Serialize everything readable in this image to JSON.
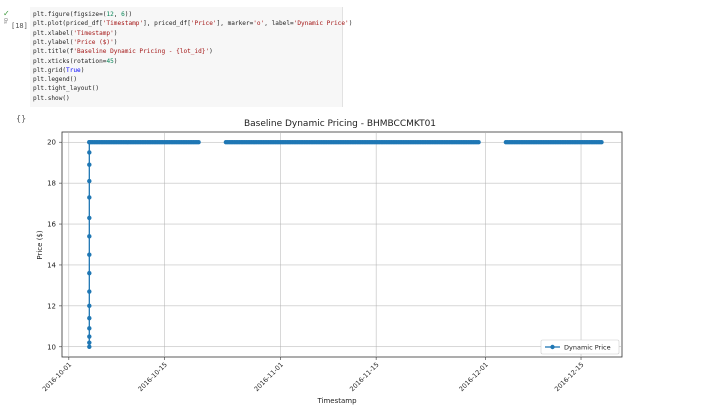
{
  "cell": {
    "exec_count": "[18]",
    "run_status_icon": "check-icon",
    "run_time": "0s",
    "code_lines": [
      "plt.figure(figsize=(12, 6))",
      "plt.plot(priced_df['Timestamp'], priced_df['Price'], marker='o', label='Dynamic Price')",
      "plt.xlabel('Timestamp')",
      "plt.ylabel('Price ($)')",
      "plt.title(f'Baseline Dynamic Pricing - {lot_id}')",
      "plt.xticks(rotation=45)",
      "plt.grid(True)",
      "plt.legend()",
      "plt.tight_layout()",
      "plt.show()"
    ],
    "output_icon": "output-toggle-icon",
    "output_icon_glyph": "{}"
  },
  "chart_data": {
    "type": "line",
    "title": "Baseline Dynamic Pricing - BHMBCCMKT01",
    "xlabel": "Timestamp",
    "ylabel": "Price ($)",
    "x_ticks": [
      "2016-10-01",
      "2016-10-15",
      "2016-11-01",
      "2016-11-15",
      "2016-12-01",
      "2016-12-15"
    ],
    "y_ticks": [
      "10",
      "12",
      "14",
      "16",
      "18",
      "20"
    ],
    "xlim": [
      "2016-09-30",
      "2016-12-21"
    ],
    "ylim": [
      9.5,
      20.5
    ],
    "grid": true,
    "legend_position": "lower-right",
    "marker": "o",
    "series": [
      {
        "name": "Dynamic Price",
        "color": "#1f77b4",
        "ramp": {
          "date": "2016-10-04",
          "values": [
            10.0,
            10.2,
            10.5,
            10.9,
            11.4,
            12.0,
            12.7,
            13.6,
            14.5,
            15.4,
            16.3,
            17.3,
            18.1,
            18.9,
            19.5,
            20.0
          ]
        },
        "segments": [
          {
            "start": "2016-10-04",
            "end": "2016-10-20",
            "value": 20.0
          },
          {
            "start": "2016-10-24",
            "end": "2016-11-30",
            "value": 20.0
          },
          {
            "start": "2016-12-04",
            "end": "2016-12-18",
            "value": 20.0
          }
        ],
        "samples_per_day": 4
      }
    ]
  }
}
